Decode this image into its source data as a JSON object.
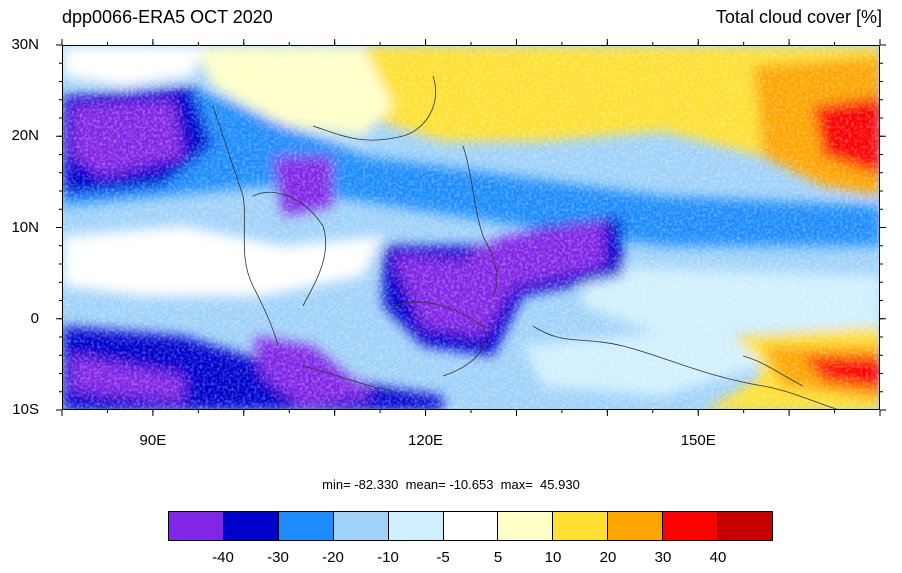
{
  "title_left": "dpp0066-ERA5 OCT 2020",
  "title_right": "Total cloud cover [%]",
  "y_axis_labels": [
    {
      "text": "30N",
      "lat": 30
    },
    {
      "text": "20N",
      "lat": 20
    },
    {
      "text": "10N",
      "lat": 10
    },
    {
      "text": "0",
      "lat": 0
    },
    {
      "text": "10S",
      "lat": -10
    }
  ],
  "x_axis_labels": [
    {
      "text": "90E",
      "lon": 90
    },
    {
      "text": "120E",
      "lon": 120
    },
    {
      "text": "150E",
      "lon": 150
    }
  ],
  "map_extent": {
    "lon_min": 80,
    "lon_max": 170,
    "lat_min": -10,
    "lat_max": 30
  },
  "stats_text": "min= -82.330  mean= -10.653  max=  45.930",
  "colorbar": {
    "colors": [
      "#8126e6",
      "#0000cd",
      "#1e8cff",
      "#a0d2fa",
      "#d0f0ff",
      "#ffffff",
      "#ffffc8",
      "#ffe033",
      "#ffa500",
      "#ff0000",
      "#c80000"
    ],
    "labels": [
      "-40",
      "-30",
      "-20",
      "-10",
      "-5",
      "5",
      "10",
      "20",
      "30",
      "40"
    ]
  }
}
